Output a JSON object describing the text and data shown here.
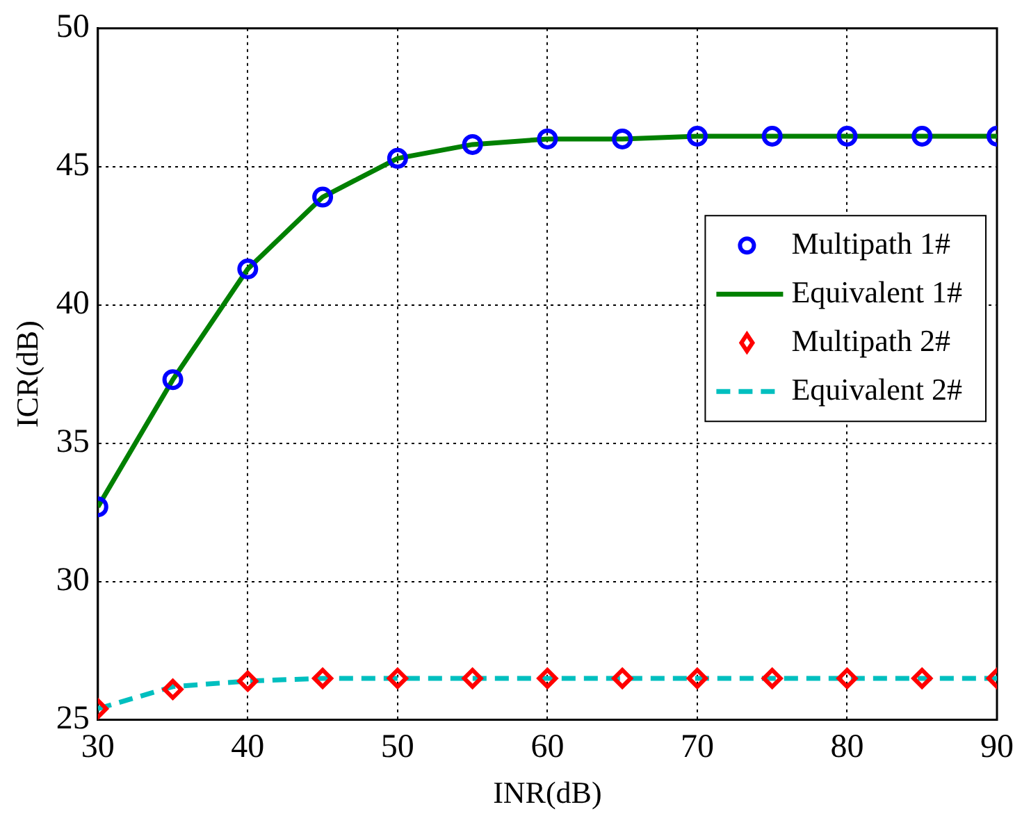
{
  "chart_data": {
    "type": "line",
    "xlabel": "INR(dB)",
    "ylabel": "ICR(dB)",
    "x": [
      30,
      35,
      40,
      45,
      50,
      55,
      60,
      65,
      70,
      75,
      80,
      85,
      90
    ],
    "series": [
      {
        "name": "Multipath 1#",
        "type": "scatter",
        "color": "#0000ff",
        "marker": "circle",
        "values": [
          32.7,
          37.3,
          41.3,
          43.9,
          45.3,
          45.8,
          46.0,
          46.0,
          46.1,
          46.1,
          46.1,
          46.1,
          46.1
        ]
      },
      {
        "name": "Equivalent 1#",
        "color": "#008000",
        "line_style": "solid",
        "marker": "none",
        "values": [
          32.7,
          37.3,
          41.3,
          43.9,
          45.3,
          45.8,
          46.0,
          46.0,
          46.1,
          46.1,
          46.1,
          46.1,
          46.1
        ]
      },
      {
        "name": "Multipath 2#",
        "type": "scatter",
        "color": "#ff0000",
        "marker": "diamond",
        "values": [
          25.4,
          26.1,
          26.4,
          26.5,
          26.5,
          26.5,
          26.5,
          26.5,
          26.5,
          26.5,
          26.5,
          26.5,
          26.5
        ]
      },
      {
        "name": "Equivalent 2#",
        "color": "#00bfbf",
        "line_style": "dashed",
        "marker": "none",
        "values": [
          25.4,
          26.2,
          26.4,
          26.5,
          26.5,
          26.5,
          26.5,
          26.5,
          26.5,
          26.5,
          26.5,
          26.5,
          26.5
        ]
      }
    ],
    "xlim": [
      30,
      90
    ],
    "xticks": [
      30,
      40,
      50,
      60,
      70,
      80,
      90
    ],
    "ylim": [
      25,
      50
    ],
    "yticks": [
      25,
      30,
      35,
      40,
      45,
      50
    ],
    "grid": true,
    "legend": "right"
  }
}
